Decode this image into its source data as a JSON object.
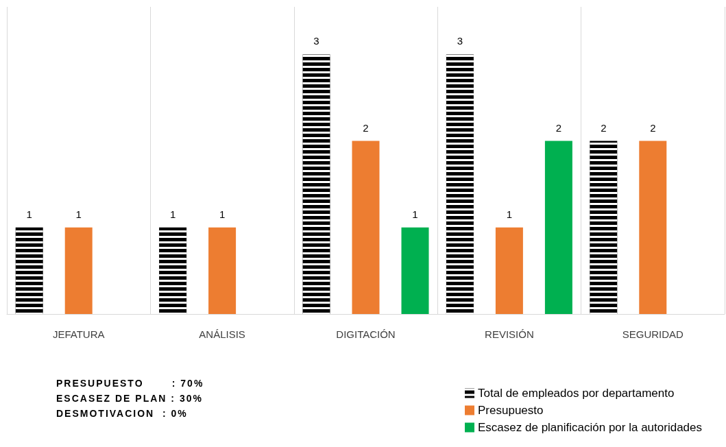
{
  "chart_data": {
    "type": "bar",
    "categories": [
      "JEFATURA",
      "ANÁLISIS",
      "DIGITACIÓN",
      "REVISIÓN",
      "SEGURIDAD"
    ],
    "series": [
      {
        "name": "Total de empleados por departamento",
        "color": "#000000",
        "values": [
          1,
          1,
          3,
          3,
          2
        ]
      },
      {
        "name": "Presupuesto",
        "color": "#ed7d31",
        "values": [
          1,
          1,
          2,
          1,
          2
        ]
      },
      {
        "name": "Escasez de planificación por la autoridades",
        "color": "#00b050",
        "values": [
          null,
          null,
          1,
          2,
          null
        ]
      }
    ],
    "data_labels": true,
    "grid": "x",
    "legend": "bottom right",
    "tick_labels": "x",
    "annotations": [
      "PRESUPUESTO       : 70%",
      "ESCASEZ DE PLAN : 30%",
      "DESMOTIVACION  : 0%"
    ]
  }
}
